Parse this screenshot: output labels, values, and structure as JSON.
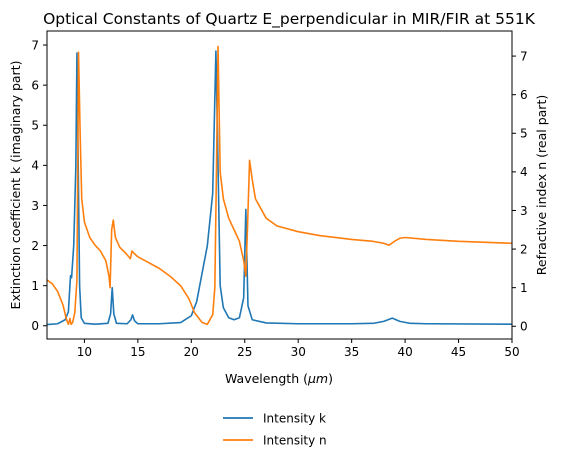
{
  "chart_data": {
    "type": "line",
    "title": "Optical Constants of Quartz E_perpendicular in MIR/FIR at 551K",
    "xlabel_prefix": "Wavelength (",
    "xlabel_unit": "μm",
    "xlabel_suffix": ")",
    "ylabel_left": "Extinction coefficient k (imaginary part)",
    "ylabel_right": "Refractive index n (real part)",
    "xlim": [
      6.5,
      50
    ],
    "ylim_left": [
      -0.33,
      7.35
    ],
    "ylim_right": [
      -0.33,
      7.65
    ],
    "x_ticks": [
      10,
      15,
      20,
      25,
      30,
      35,
      40,
      45,
      50
    ],
    "y_left_ticks": [
      0,
      1,
      2,
      3,
      4,
      5,
      6,
      7
    ],
    "y_right_ticks": [
      0,
      1,
      2,
      3,
      4,
      5,
      6,
      7
    ],
    "legend_position": "below plot, centered",
    "series": [
      {
        "name": "Intensity k",
        "axis": "left",
        "color": "#1f77b4",
        "points": [
          [
            6.5,
            0.03
          ],
          [
            7.5,
            0.05
          ],
          [
            8.2,
            0.15
          ],
          [
            8.5,
            0.35
          ],
          [
            8.6,
            0.8
          ],
          [
            8.7,
            1.25
          ],
          [
            8.8,
            1.2
          ],
          [
            9.0,
            2.0
          ],
          [
            9.2,
            4.0
          ],
          [
            9.3,
            6.8
          ],
          [
            9.4,
            4.5
          ],
          [
            9.55,
            1.0
          ],
          [
            9.7,
            0.2
          ],
          [
            10.0,
            0.06
          ],
          [
            11.0,
            0.04
          ],
          [
            12.2,
            0.06
          ],
          [
            12.45,
            0.3
          ],
          [
            12.6,
            0.95
          ],
          [
            12.75,
            0.3
          ],
          [
            13.0,
            0.06
          ],
          [
            14.0,
            0.05
          ],
          [
            14.35,
            0.15
          ],
          [
            14.5,
            0.27
          ],
          [
            14.7,
            0.12
          ],
          [
            15.0,
            0.05
          ],
          [
            17.0,
            0.05
          ],
          [
            19.0,
            0.08
          ],
          [
            20.0,
            0.25
          ],
          [
            20.5,
            0.6
          ],
          [
            21.0,
            1.3
          ],
          [
            21.5,
            2.0
          ],
          [
            22.0,
            3.3
          ],
          [
            22.3,
            6.85
          ],
          [
            22.5,
            4.0
          ],
          [
            22.7,
            1.0
          ],
          [
            23.0,
            0.45
          ],
          [
            23.5,
            0.2
          ],
          [
            24.0,
            0.15
          ],
          [
            24.5,
            0.2
          ],
          [
            24.9,
            0.7
          ],
          [
            25.1,
            2.9
          ],
          [
            25.3,
            0.5
          ],
          [
            25.7,
            0.15
          ],
          [
            27.0,
            0.07
          ],
          [
            30.0,
            0.05
          ],
          [
            35.0,
            0.05
          ],
          [
            37.0,
            0.06
          ],
          [
            38.0,
            0.11
          ],
          [
            38.8,
            0.19
          ],
          [
            39.5,
            0.11
          ],
          [
            40.5,
            0.06
          ],
          [
            42.0,
            0.05
          ],
          [
            50.0,
            0.04
          ]
        ]
      },
      {
        "name": "Intensity n",
        "axis": "right",
        "color": "#ff7f0e",
        "points": [
          [
            6.5,
            1.2
          ],
          [
            7.0,
            1.1
          ],
          [
            7.5,
            0.9
          ],
          [
            8.0,
            0.55
          ],
          [
            8.3,
            0.2
          ],
          [
            8.5,
            0.05
          ],
          [
            8.65,
            0.2
          ],
          [
            8.75,
            0.05
          ],
          [
            8.9,
            0.1
          ],
          [
            9.1,
            0.35
          ],
          [
            9.3,
            1.2
          ],
          [
            9.45,
            7.1
          ],
          [
            9.6,
            5.0
          ],
          [
            9.75,
            3.3
          ],
          [
            10.0,
            2.7
          ],
          [
            10.5,
            2.3
          ],
          [
            11.0,
            2.1
          ],
          [
            11.5,
            1.95
          ],
          [
            12.0,
            1.7
          ],
          [
            12.3,
            1.3
          ],
          [
            12.4,
            1.0
          ],
          [
            12.55,
            2.5
          ],
          [
            12.7,
            2.75
          ],
          [
            12.9,
            2.3
          ],
          [
            13.3,
            2.05
          ],
          [
            14.0,
            1.85
          ],
          [
            14.3,
            1.75
          ],
          [
            14.45,
            1.95
          ],
          [
            14.6,
            1.9
          ],
          [
            15.0,
            1.8
          ],
          [
            16.0,
            1.65
          ],
          [
            17.0,
            1.5
          ],
          [
            18.0,
            1.3
          ],
          [
            19.0,
            1.05
          ],
          [
            19.8,
            0.7
          ],
          [
            20.3,
            0.35
          ],
          [
            21.0,
            0.1
          ],
          [
            21.5,
            0.05
          ],
          [
            22.0,
            0.3
          ],
          [
            22.2,
            1.0
          ],
          [
            22.35,
            4.0
          ],
          [
            22.5,
            7.25
          ],
          [
            22.7,
            4.0
          ],
          [
            23.0,
            3.3
          ],
          [
            23.5,
            2.8
          ],
          [
            24.0,
            2.5
          ],
          [
            24.5,
            2.2
          ],
          [
            24.9,
            1.7
          ],
          [
            25.1,
            1.3
          ],
          [
            25.25,
            2.5
          ],
          [
            25.45,
            4.3
          ],
          [
            25.7,
            3.8
          ],
          [
            26.0,
            3.3
          ],
          [
            27.0,
            2.8
          ],
          [
            28.0,
            2.6
          ],
          [
            30.0,
            2.45
          ],
          [
            32.0,
            2.35
          ],
          [
            35.0,
            2.25
          ],
          [
            37.0,
            2.2
          ],
          [
            38.0,
            2.15
          ],
          [
            38.5,
            2.1
          ],
          [
            39.0,
            2.2
          ],
          [
            39.5,
            2.28
          ],
          [
            40.0,
            2.3
          ],
          [
            42.0,
            2.25
          ],
          [
            45.0,
            2.2
          ],
          [
            50.0,
            2.15
          ]
        ]
      }
    ]
  }
}
